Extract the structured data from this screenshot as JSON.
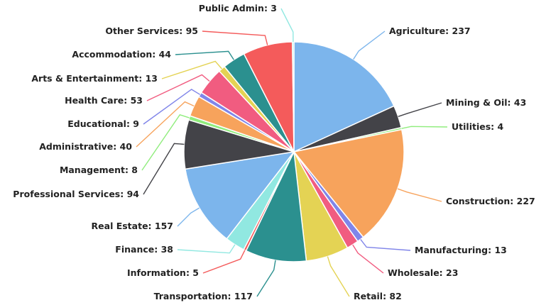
{
  "chart_data": {
    "type": "pie",
    "title": "",
    "start": "top",
    "direction": "clockwise",
    "slices": [
      {
        "name": "Agriculture",
        "value": 237,
        "color": "#7cb5ec",
        "label": "Agriculture: 237"
      },
      {
        "name": "Mining & Oil",
        "value": 43,
        "color": "#434348",
        "label": "Mining & Oil: 43"
      },
      {
        "name": "Utilities",
        "value": 4,
        "color": "#90ed7d",
        "label": "Utilities: 4"
      },
      {
        "name": "Construction",
        "value": 227,
        "color": "#f7a35c",
        "label": "Construction: 227"
      },
      {
        "name": "Manufacturing",
        "value": 13,
        "color": "#8085e9",
        "label": "Manufacturing: 13"
      },
      {
        "name": "Wholesale",
        "value": 23,
        "color": "#f15c80",
        "label": "Wholesale: 23"
      },
      {
        "name": "Retail",
        "value": 82,
        "color": "#e4d354",
        "label": "Retail: 82"
      },
      {
        "name": "Transportation",
        "value": 117,
        "color": "#2b908f",
        "label": "Transportation: 117"
      },
      {
        "name": "Information",
        "value": 5,
        "color": "#f45b5b",
        "label": "Information: 5"
      },
      {
        "name": "Finance",
        "value": 38,
        "color": "#91e8e1",
        "label": "Finance: 38"
      },
      {
        "name": "Real Estate",
        "value": 157,
        "color": "#7cb5ec",
        "label": "Real Estate: 157"
      },
      {
        "name": "Professional Services",
        "value": 94,
        "color": "#434348",
        "label": "Professional Services: 94"
      },
      {
        "name": "Management",
        "value": 8,
        "color": "#90ed7d",
        "label": "Management: 8"
      },
      {
        "name": "Administrative",
        "value": 40,
        "color": "#f7a35c",
        "label": "Administrative: 40"
      },
      {
        "name": "Educational",
        "value": 9,
        "color": "#8085e9",
        "label": "Educational: 9"
      },
      {
        "name": "Health Care",
        "value": 53,
        "color": "#f15c80",
        "label": "Health Care: 53"
      },
      {
        "name": "Arts & Entertainment",
        "value": 13,
        "color": "#e4d354",
        "label": "Arts & Entertainment: 13"
      },
      {
        "name": "Accommodation",
        "value": 44,
        "color": "#2b908f",
        "label": "Accommodation: 44"
      },
      {
        "name": "Other Services",
        "value": 95,
        "color": "#f45b5b",
        "label": "Other Services: 95"
      },
      {
        "name": "Public Admin",
        "value": 3,
        "color": "#91e8e1",
        "label": "Public Admin: 3"
      }
    ]
  }
}
